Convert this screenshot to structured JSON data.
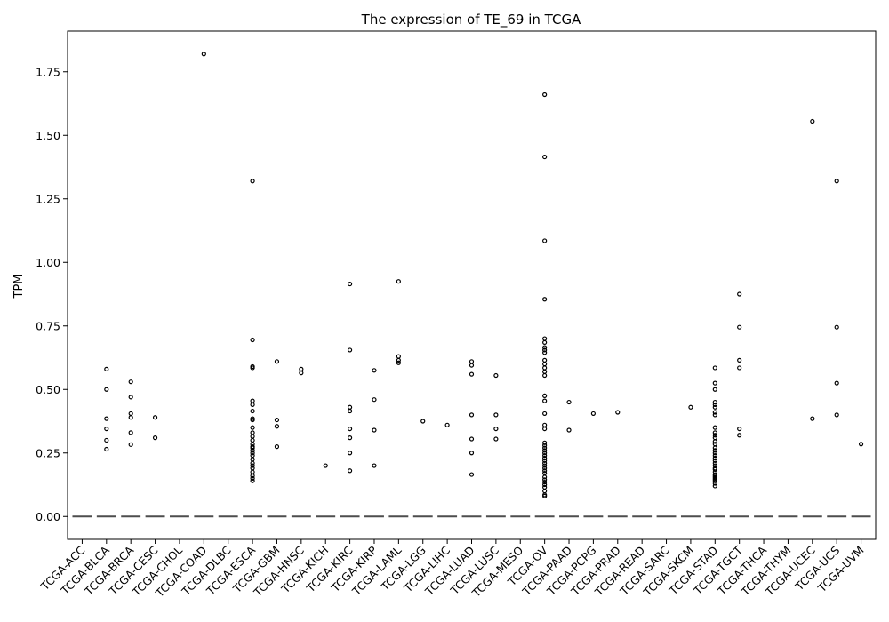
{
  "chart_data": {
    "type": "box",
    "title": "The expression of TE_69 in TCGA",
    "xlabel": "",
    "ylabel": "TPM",
    "ylim": [
      -0.09,
      1.91
    ],
    "yticks": [
      0.0,
      0.25,
      0.5,
      0.75,
      1.0,
      1.25,
      1.5,
      1.75
    ],
    "ytick_labels": [
      "0.00",
      "0.25",
      "0.50",
      "0.75",
      "1.00",
      "1.25",
      "1.50",
      "1.75"
    ],
    "median": 0,
    "grid": false,
    "legend": "none",
    "categories": [
      "TCGA-ACC",
      "TCGA-BLCA",
      "TCGA-BRCA",
      "TCGA-CESC",
      "TCGA-CHOL",
      "TCGA-COAD",
      "TCGA-DLBC",
      "TCGA-ESCA",
      "TCGA-GBM",
      "TCGA-HNSC",
      "TCGA-KICH",
      "TCGA-KIRC",
      "TCGA-KIRP",
      "TCGA-LAML",
      "TCGA-LGG",
      "TCGA-LIHC",
      "TCGA-LUAD",
      "TCGA-LUSC",
      "TCGA-MESO",
      "TCGA-OV",
      "TCGA-PAAD",
      "TCGA-PCPG",
      "TCGA-PRAD",
      "TCGA-READ",
      "TCGA-SARC",
      "TCGA-SKCM",
      "TCGA-STAD",
      "TCGA-TGCT",
      "TCGA-THCA",
      "TCGA-THYM",
      "TCGA-UCEC",
      "TCGA-UCS",
      "TCGA-UVM"
    ],
    "outliers": [
      [],
      [
        0.58,
        0.5,
        0.385,
        0.345,
        0.3,
        0.265
      ],
      [
        0.53,
        0.47,
        0.405,
        0.39,
        0.33,
        0.283
      ],
      [
        0.39,
        0.31
      ],
      [],
      [
        1.82
      ],
      [],
      [
        1.32,
        0.695,
        0.59,
        0.585,
        0.455,
        0.44,
        0.415,
        0.385,
        0.38,
        0.35,
        0.33,
        0.315,
        0.3,
        0.285,
        0.275,
        0.27,
        0.26,
        0.25,
        0.24,
        0.225,
        0.21,
        0.2,
        0.19,
        0.175,
        0.16,
        0.15,
        0.14
      ],
      [
        0.61,
        0.38,
        0.355,
        0.275
      ],
      [
        0.58,
        0.565
      ],
      [
        0.2
      ],
      [
        0.915,
        0.655,
        0.43,
        0.415,
        0.345,
        0.31,
        0.25,
        0.18
      ],
      [
        0.575,
        0.46,
        0.34,
        0.2
      ],
      [
        0.925,
        0.63,
        0.615,
        0.605
      ],
      [
        0.375
      ],
      [
        0.36
      ],
      [
        0.61,
        0.595,
        0.56,
        0.4,
        0.305,
        0.25,
        0.165
      ],
      [
        0.555,
        0.4,
        0.345,
        0.305
      ],
      [],
      [
        1.66,
        1.415,
        1.085,
        0.855,
        0.7,
        0.685,
        0.665,
        0.655,
        0.645,
        0.615,
        0.6,
        0.585,
        0.57,
        0.555,
        0.475,
        0.455,
        0.405,
        0.36,
        0.345,
        0.29,
        0.28,
        0.27,
        0.26,
        0.25,
        0.24,
        0.23,
        0.22,
        0.21,
        0.2,
        0.19,
        0.18,
        0.17,
        0.155,
        0.145,
        0.135,
        0.125,
        0.115,
        0.1,
        0.085,
        0.08
      ],
      [
        0.45,
        0.34
      ],
      [
        0.405
      ],
      [
        0.41
      ],
      [],
      [],
      [
        0.43
      ],
      [
        0.585,
        0.525,
        0.5,
        0.45,
        0.44,
        0.43,
        0.41,
        0.4,
        0.35,
        0.33,
        0.32,
        0.31,
        0.295,
        0.285,
        0.27,
        0.26,
        0.25,
        0.24,
        0.23,
        0.22,
        0.21,
        0.2,
        0.19,
        0.185,
        0.175,
        0.165,
        0.16,
        0.155,
        0.15,
        0.145,
        0.14,
        0.13,
        0.12
      ],
      [
        0.875,
        0.745,
        0.615,
        0.585,
        0.345,
        0.32
      ],
      [],
      [],
      [
        1.555,
        0.385
      ],
      [
        1.32,
        0.745,
        0.525,
        0.4
      ],
      [
        0.285
      ]
    ]
  }
}
